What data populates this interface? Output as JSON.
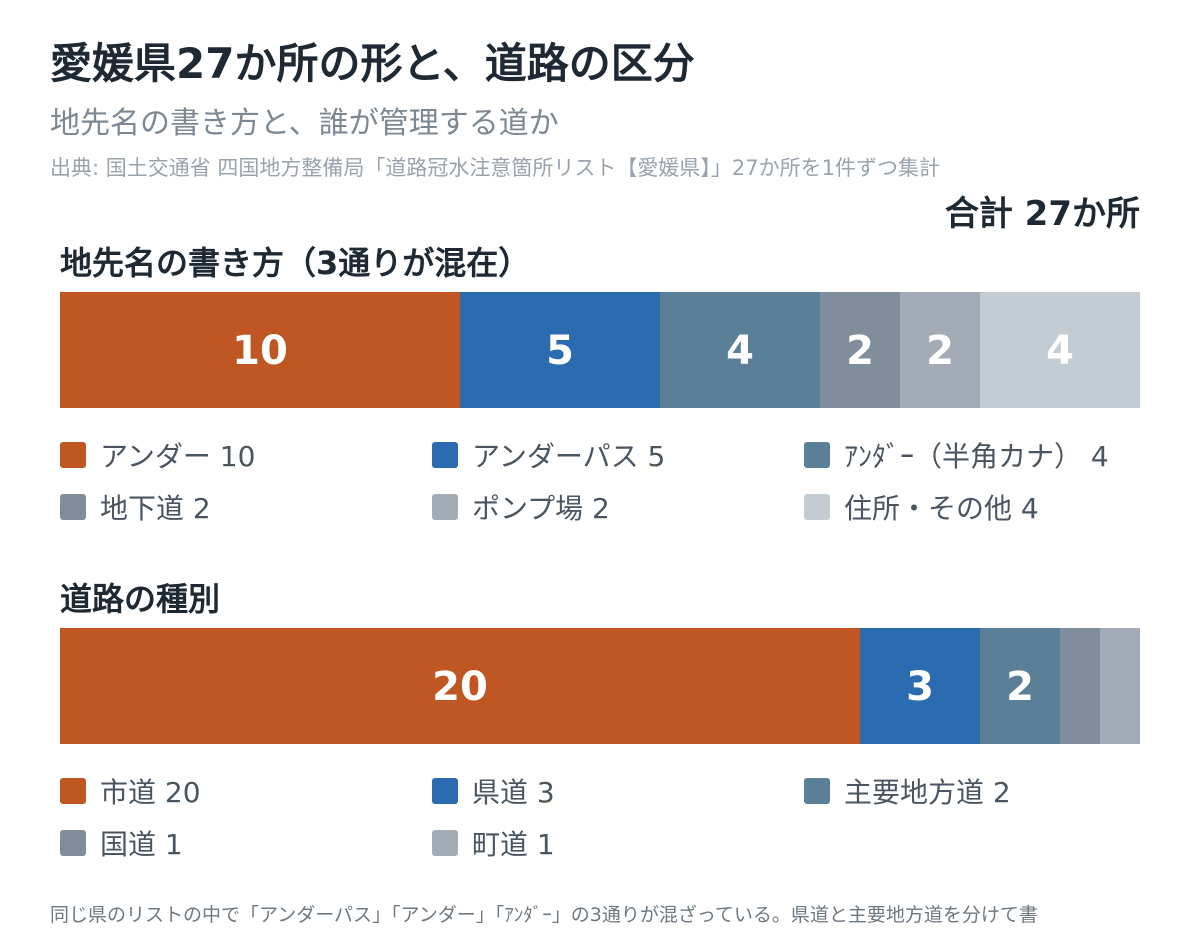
{
  "title": "愛媛県27か所の形と、道路の区分",
  "subtitle": "地先名の書き方と、誰が管理する道か",
  "source": "出典: 国土交通省 四国地方整備局「道路冠水注意箇所リスト【愛媛県】」27か所を1件ずつ集計",
  "total_label": "合計 27か所",
  "footnote": "同じ県のリストの中で「アンダーパス」「アンダー」「ｱﾝﾀﾞｰ」の3通りが混ざっている。県道と主要地方道を分けて書",
  "chart_data": [
    {
      "type": "bar",
      "orientation": "horizontal-stacked",
      "title": "地先名の書き方（3通りが混在）",
      "total": 27,
      "series": [
        {
          "name": "アンダー",
          "value": 10,
          "label": "10",
          "legend": "アンダー 10",
          "color": "#c05621"
        },
        {
          "name": "アンダーパス",
          "value": 5,
          "label": "5",
          "legend": "アンダーパス 5",
          "color": "#2b6cb0"
        },
        {
          "name": "ｱﾝﾀﾞｰ（半角カナ）",
          "value": 4,
          "label": "4",
          "legend": "ｱﾝﾀﾞｰ（半角カナ） 4",
          "color": "#5a7f97"
        },
        {
          "name": "地下道",
          "value": 2,
          "label": "2",
          "legend": "地下道 2",
          "color": "#808d9b"
        },
        {
          "name": "ポンプ場",
          "value": 2,
          "label": "2",
          "legend": "ポンプ場 2",
          "color": "#a3acb6"
        },
        {
          "name": "住所・その他",
          "value": 4,
          "label": "4",
          "legend": "住所・その他 4",
          "color": "#c3cbd3"
        }
      ]
    },
    {
      "type": "bar",
      "orientation": "horizontal-stacked",
      "title": "道路の種別",
      "total": 27,
      "series": [
        {
          "name": "市道",
          "value": 20,
          "label": "20",
          "legend": "市道 20",
          "color": "#c05621"
        },
        {
          "name": "県道",
          "value": 3,
          "label": "3",
          "legend": "県道 3",
          "color": "#2b6cb0"
        },
        {
          "name": "主要地方道",
          "value": 2,
          "label": "2",
          "legend": "主要地方道 2",
          "color": "#5a7f97"
        },
        {
          "name": "国道",
          "value": 1,
          "label": "",
          "legend": "国道 1",
          "color": "#808d9b"
        },
        {
          "name": "町道",
          "value": 1,
          "label": "",
          "legend": "町道 1",
          "color": "#a3acb6"
        }
      ]
    }
  ]
}
